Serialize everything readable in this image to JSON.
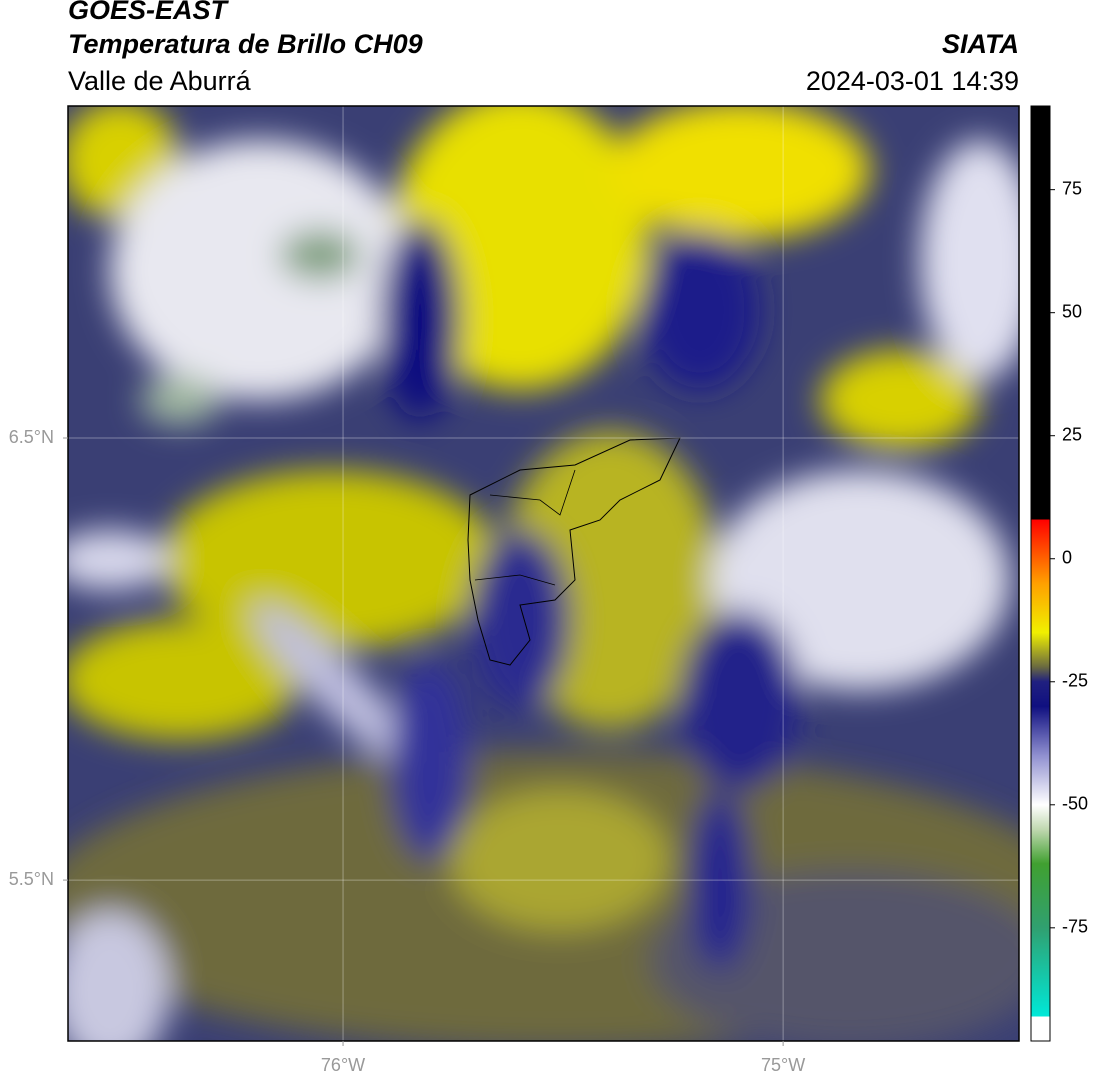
{
  "header": {
    "title": "GOES-EAST",
    "subtitle": "Temperatura de Brillo CH09",
    "region": "Valle de Aburrá",
    "source": "SIATA",
    "datetime": "2024-03-01 14:39"
  },
  "map": {
    "lonlim": [
      -76.625,
      -74.464
    ],
    "latlim": [
      5.136,
      7.251
    ],
    "lonticks": [
      {
        "value": -76,
        "label": "76°W"
      },
      {
        "value": -75,
        "label": "75°W"
      }
    ],
    "latticks": [
      {
        "value": 6.5,
        "label": "6.5°N"
      },
      {
        "value": 5.5,
        "label": "5.5°N"
      }
    ],
    "grid": true
  },
  "colorbar": {
    "lim": [
      -98,
      92
    ],
    "ticks": [
      75,
      50,
      25,
      0,
      -25,
      -50,
      -75
    ],
    "stops": [
      {
        "value": -98,
        "color": "#ffffff"
      },
      {
        "value": -93,
        "color": "#ffffff"
      },
      {
        "value": -93,
        "color": "#00e8d8"
      },
      {
        "value": -75,
        "color": "#30a070"
      },
      {
        "value": -62,
        "color": "#40a030"
      },
      {
        "value": -55,
        "color": "#c0d8b0"
      },
      {
        "value": -50,
        "color": "#ffffff"
      },
      {
        "value": -40,
        "color": "#9090d0"
      },
      {
        "value": -30,
        "color": "#101080"
      },
      {
        "value": -25,
        "color": "#202080"
      },
      {
        "value": -22,
        "color": "#6a6a40"
      },
      {
        "value": -15,
        "color": "#f0f000"
      },
      {
        "value": -5,
        "color": "#ffa000"
      },
      {
        "value": 8,
        "color": "#ff0000"
      },
      {
        "value": 8,
        "color": "#000000"
      },
      {
        "value": 92,
        "color": "#000000"
      }
    ]
  }
}
